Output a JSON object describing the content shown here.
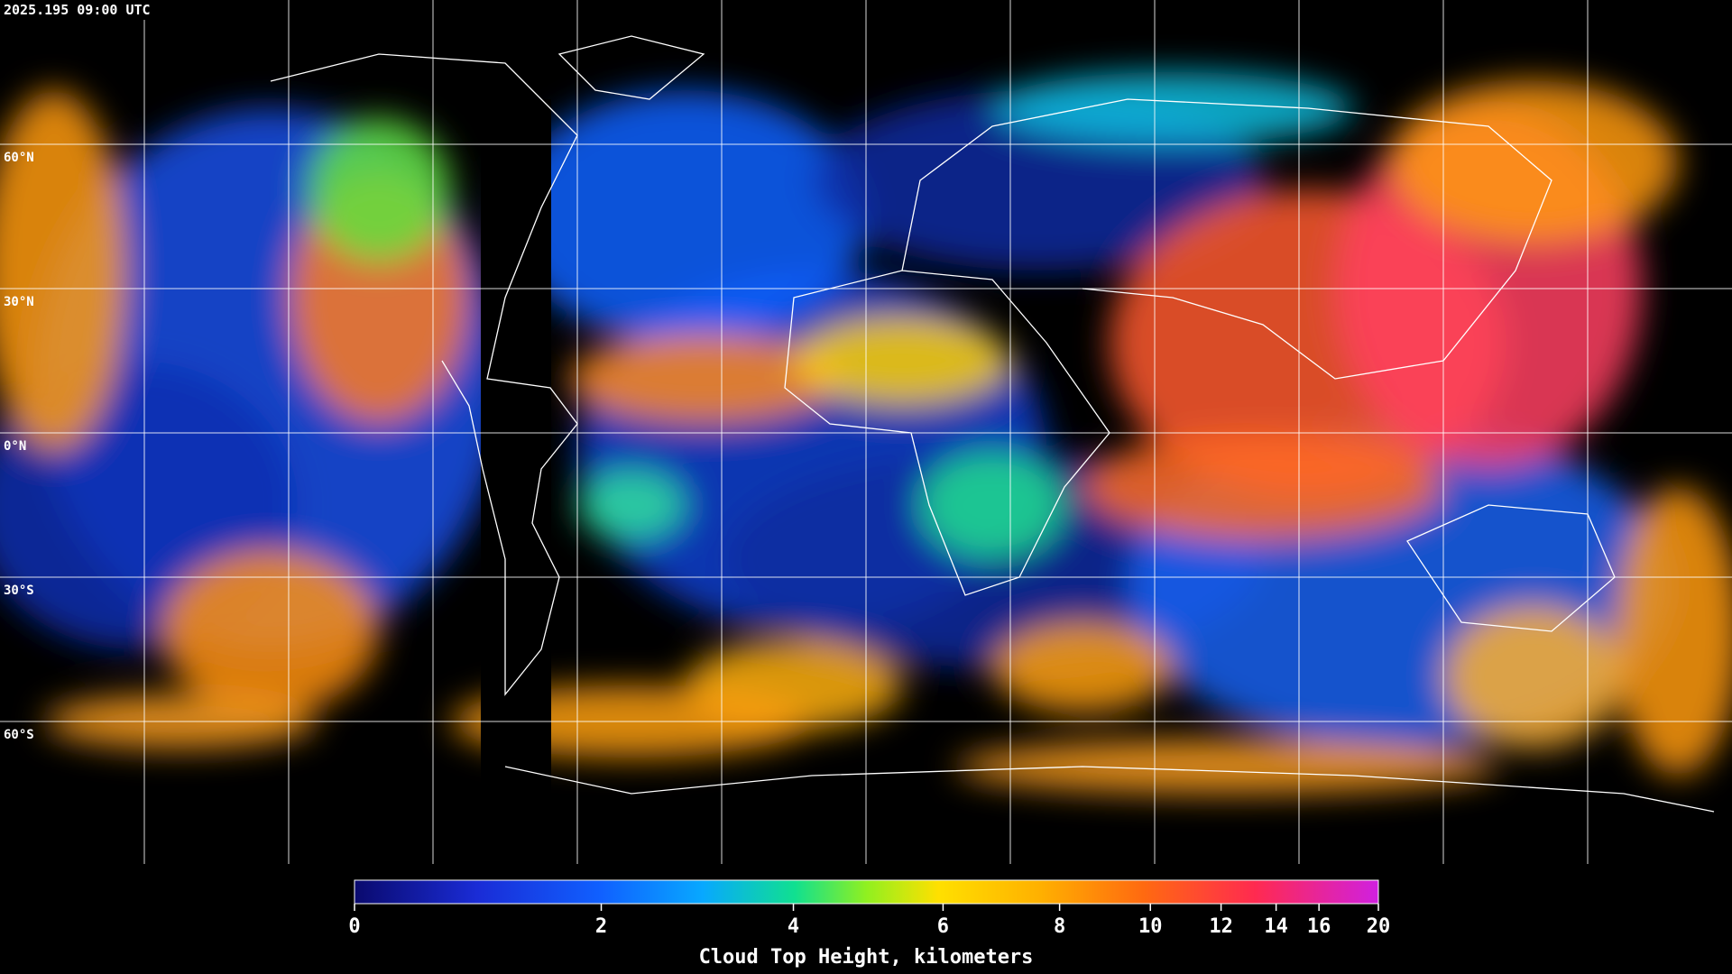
{
  "header": {
    "timestamp": "2025.195 09:00 UTC"
  },
  "map": {
    "lat_labels": [
      "60°N",
      "30°N",
      "0°N",
      "30°S",
      "60°S"
    ]
  },
  "colorbar": {
    "title": "Cloud Top Height, kilometers",
    "ticks": [
      0,
      2,
      4,
      6,
      8,
      10,
      12,
      14,
      16,
      20
    ],
    "range": [
      0,
      20
    ]
  }
}
